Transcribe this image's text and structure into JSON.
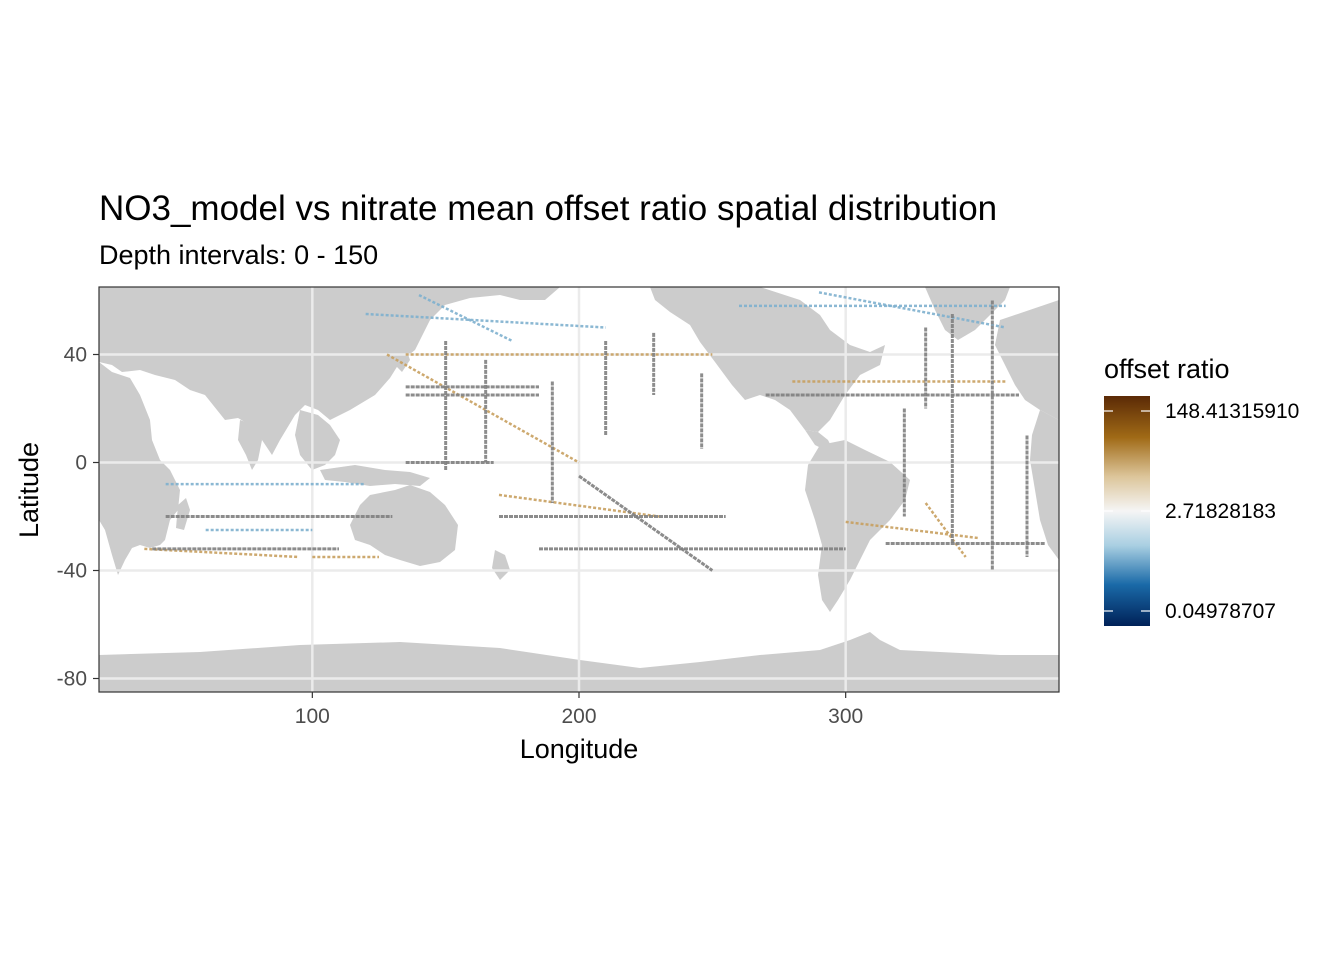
{
  "chart_data": {
    "type": "heatmap",
    "title": "NO3_model vs nitrate mean offset ratio spatial distribution",
    "subtitle": "Depth intervals: 0 - 150",
    "xlabel": "Longitude",
    "ylabel": "Latitude",
    "xlim": [
      20,
      380
    ],
    "ylim": [
      -85,
      65
    ],
    "x_ticks": [
      100,
      200,
      300
    ],
    "y_ticks": [
      40,
      0,
      -40,
      -80
    ],
    "grid": true,
    "background": "land shown in grey",
    "legend": {
      "title": "offset ratio",
      "position": "right",
      "scale": "log",
      "labels": [
        "148.41315910",
        "2.71828183",
        "0.04978707"
      ],
      "values": [
        148.4131591,
        2.71828183,
        0.04978707
      ],
      "colors": {
        "low": "#002158",
        "mid": "#f5f5f5",
        "high": "#5b2a06",
        "missing_track": "#808080",
        "land": "#cccccc"
      }
    },
    "tracks_gray": [
      {
        "lon": [
          135,
          185
        ],
        "lat": [
          28,
          28
        ]
      },
      {
        "lon": [
          135,
          185
        ],
        "lat": [
          25,
          25
        ]
      },
      {
        "lon": [
          135,
          168
        ],
        "lat": [
          0,
          0
        ]
      },
      {
        "lon": [
          170,
          255
        ],
        "lat": [
          -20,
          -20
        ]
      },
      {
        "lon": [
          185,
          300
        ],
        "lat": [
          -32,
          -32
        ]
      },
      {
        "lon": [
          270,
          365
        ],
        "lat": [
          25,
          25
        ]
      },
      {
        "lon": [
          315,
          375
        ],
        "lat": [
          -30,
          -30
        ]
      },
      {
        "lon": [
          45,
          130
        ],
        "lat": [
          -20,
          -20
        ]
      },
      {
        "lon": [
          40,
          110
        ],
        "lat": [
          -32,
          -32
        ]
      },
      {
        "lon": [
          150,
          150
        ],
        "lat": [
          45,
          -3
        ]
      },
      {
        "lon": [
          165,
          165
        ],
        "lat": [
          38,
          0
        ]
      },
      {
        "lon": [
          190,
          190
        ],
        "lat": [
          30,
          -15
        ]
      },
      {
        "lon": [
          210,
          210
        ],
        "lat": [
          45,
          10
        ]
      },
      {
        "lon": [
          228,
          228
        ],
        "lat": [
          48,
          25
        ]
      },
      {
        "lon": [
          246,
          246
        ],
        "lat": [
          33,
          5
        ]
      },
      {
        "lon": [
          340,
          340
        ],
        "lat": [
          55,
          -30
        ]
      },
      {
        "lon": [
          330,
          330
        ],
        "lat": [
          50,
          20
        ]
      },
      {
        "lon": [
          355,
          355
        ],
        "lat": [
          60,
          -40
        ]
      },
      {
        "lon": [
          322,
          322
        ],
        "lat": [
          20,
          -20
        ]
      },
      {
        "lon": [
          368,
          368
        ],
        "lat": [
          10,
          -35
        ]
      },
      {
        "lon": [
          200,
          250
        ],
        "lat": [
          -5,
          -40
        ]
      }
    ],
    "tracks_tan": [
      {
        "lon": [
          135,
          250
        ],
        "lat": [
          40,
          40
        ]
      },
      {
        "lon": [
          280,
          360
        ],
        "lat": [
          30,
          30
        ]
      },
      {
        "lon": [
          37,
          95
        ],
        "lat": [
          -32,
          -35
        ]
      },
      {
        "lon": [
          100,
          125
        ],
        "lat": [
          -35,
          -35
        ]
      },
      {
        "lon": [
          170,
          230
        ],
        "lat": [
          -12,
          -20
        ]
      },
      {
        "lon": [
          300,
          350
        ],
        "lat": [
          -22,
          -28
        ]
      },
      {
        "lon": [
          128,
          200
        ],
        "lat": [
          40,
          0
        ]
      },
      {
        "lon": [
          330,
          345
        ],
        "lat": [
          -15,
          -35
        ]
      }
    ],
    "tracks_blue": [
      {
        "lon": [
          260,
          360
        ],
        "lat": [
          58,
          58
        ]
      },
      {
        "lon": [
          290,
          360
        ],
        "lat": [
          63,
          50
        ]
      },
      {
        "lon": [
          45,
          120
        ],
        "lat": [
          -8,
          -8
        ]
      },
      {
        "lon": [
          60,
          100
        ],
        "lat": [
          -25,
          -25
        ]
      },
      {
        "lon": [
          120,
          210
        ],
        "lat": [
          55,
          50
        ]
      },
      {
        "lon": [
          140,
          175
        ],
        "lat": [
          62,
          45
        ]
      }
    ]
  }
}
